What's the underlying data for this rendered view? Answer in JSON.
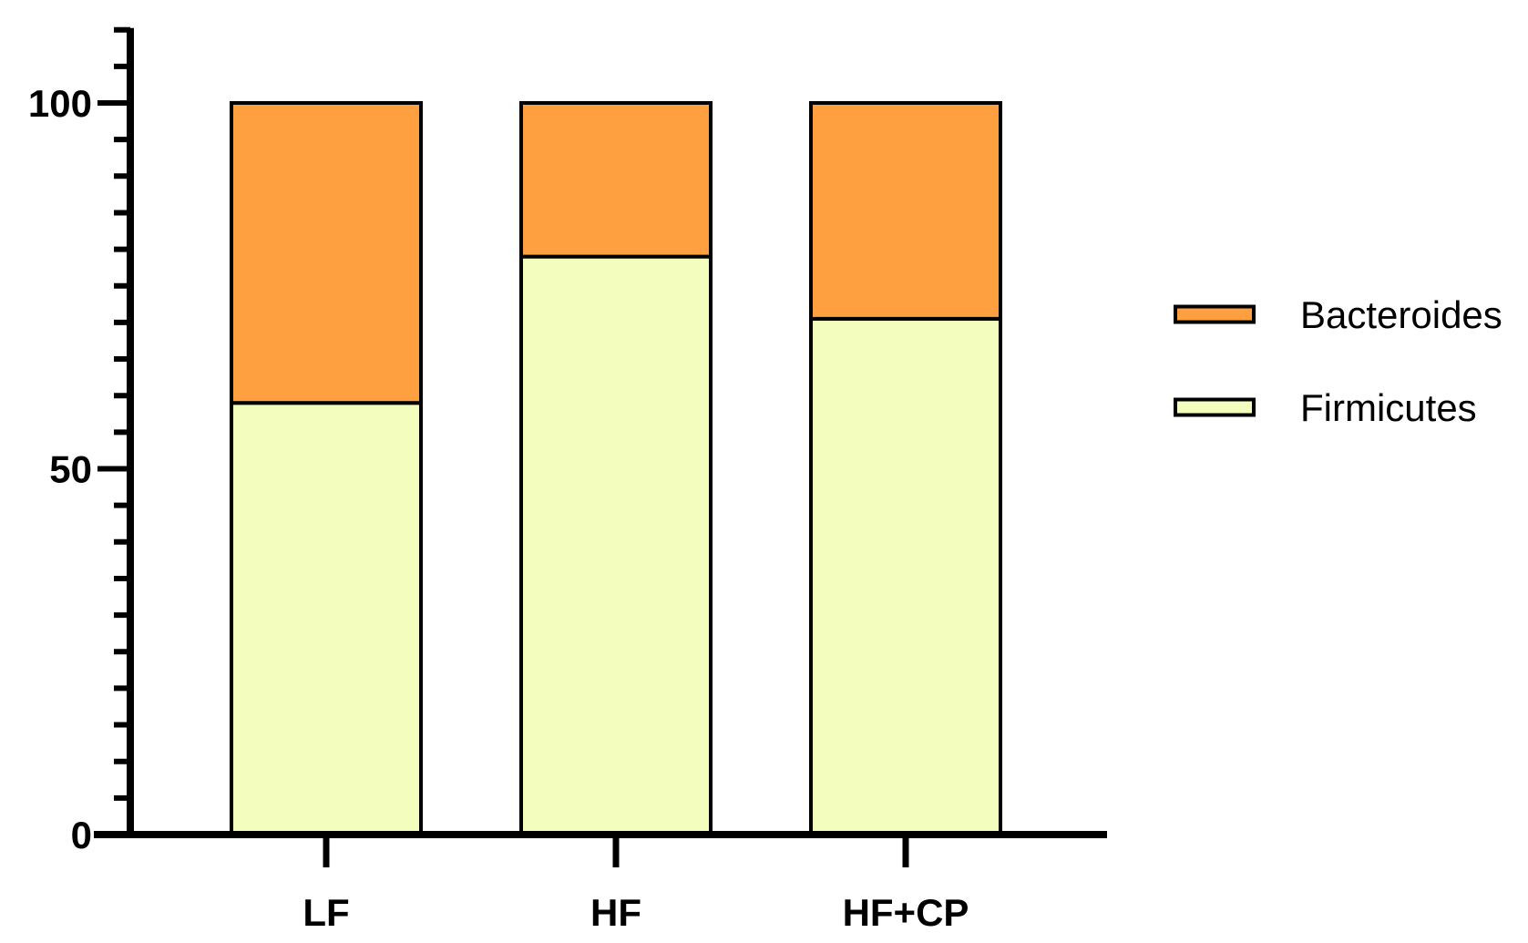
{
  "chart_data": {
    "type": "bar",
    "stacked": true,
    "categories": [
      "LF",
      "HF",
      "HF+CP"
    ],
    "series": [
      {
        "name": "Firmicutes",
        "values": [
          59,
          79,
          70.5
        ],
        "color": "#F2FDBE"
      },
      {
        "name": "Bacteroides",
        "values": [
          41,
          21,
          29.5
        ],
        "color": "#FFA040"
      }
    ],
    "title": "",
    "xlabel": "",
    "ylabel": "",
    "ylim": [
      0,
      110
    ],
    "yticks": [
      0,
      50,
      100
    ],
    "ytick_labels": [
      "0",
      "50",
      "100"
    ],
    "minor_tick_step": 5,
    "legend": {
      "position": "right",
      "order": [
        "Bacteroides",
        "Firmicutes"
      ]
    },
    "grid": false,
    "stroke_color": "#000000"
  }
}
